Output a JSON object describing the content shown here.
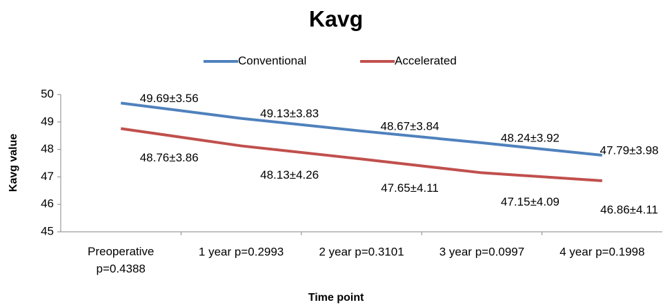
{
  "chart_data": {
    "type": "line",
    "title": "Kavg",
    "x_label": "Time point",
    "y_label": "Kavg value",
    "categories": [
      "Preoperative p=0.4388",
      "1 year p=0.2993",
      "2 year p=0.3101",
      "3 year p=0.0997",
      "4 year p=0.1998"
    ],
    "series": [
      {
        "name": "Conventional",
        "color": "#4f81bd",
        "values": [
          49.69,
          49.13,
          48.67,
          48.24,
          47.79
        ],
        "value_labels": [
          "49.69±3.56",
          "49.13±3.83",
          "48.67±3.84",
          "48.24±3.92",
          "47.79±3.98"
        ]
      },
      {
        "name": "Accelerated",
        "color": "#c0504d",
        "values": [
          48.76,
          48.13,
          47.65,
          47.15,
          46.86
        ],
        "value_labels": [
          "48.76±3.86",
          "48.13±4.26",
          "47.65±4.11",
          "47.15±4.09",
          "46.86±4.11"
        ]
      }
    ],
    "ylim": [
      45,
      50
    ],
    "yticks": [
      45,
      46,
      47,
      48,
      49,
      50
    ],
    "grid": false,
    "legend": "top"
  }
}
